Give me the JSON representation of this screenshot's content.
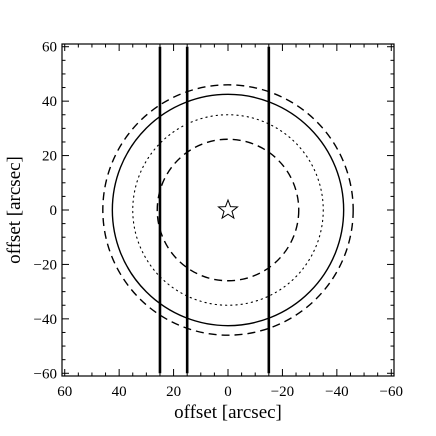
{
  "chart_data": {
    "type": "diagram",
    "xlabel": "offset [arcsec]",
    "ylabel": "offset [arcsec]",
    "xlim": [
      61,
      -61
    ],
    "ylim": [
      -61,
      61
    ],
    "x_ticks": [
      60,
      40,
      20,
      0,
      -20,
      -40,
      -60
    ],
    "x_tick_labels": [
      "60",
      "40",
      "20",
      "0",
      "−20",
      "−40",
      "−60"
    ],
    "y_ticks": [
      60,
      40,
      20,
      0,
      -20,
      -40,
      -60
    ],
    "y_tick_labels": [
      "60",
      "40",
      "20",
      "0",
      "−20",
      "−40",
      "−60"
    ],
    "center_marker": {
      "shape": "star",
      "x": 0,
      "y": 0
    },
    "circles": [
      {
        "radius": 26,
        "style": "dashed"
      },
      {
        "radius": 35,
        "style": "dotted"
      },
      {
        "radius": 42.5,
        "style": "solid"
      },
      {
        "radius": 46,
        "style": "dashed"
      }
    ],
    "vertical_lines": [
      {
        "x": 25
      },
      {
        "x": 15
      },
      {
        "x": -15
      }
    ],
    "vertical_line_range": [
      -60,
      60
    ]
  }
}
